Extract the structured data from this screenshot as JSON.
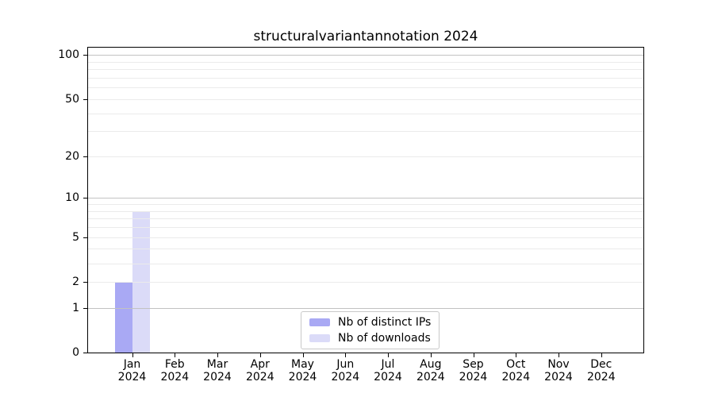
{
  "chart_data": {
    "type": "bar",
    "title": "structuralvariantannotation 2024",
    "x_categories": [
      "Jan",
      "Feb",
      "Mar",
      "Apr",
      "May",
      "Jun",
      "Jul",
      "Aug",
      "Sep",
      "Oct",
      "Nov",
      "Dec"
    ],
    "x_year": "2024",
    "series": [
      {
        "key": "distinct-ips",
        "name": "Nb of distinct IPs",
        "color": "#a9a9f4",
        "values": [
          2,
          0,
          0,
          0,
          0,
          0,
          0,
          0,
          0,
          0,
          0,
          0
        ]
      },
      {
        "key": "downloads",
        "name": "Nb of downloads",
        "color": "#dbdbf8",
        "values": [
          8,
          0,
          0,
          0,
          0,
          0,
          0,
          0,
          0,
          0,
          0,
          0
        ]
      }
    ],
    "y_axis": {
      "scale": "log10(value+1)",
      "tick_values": [
        100,
        50,
        20,
        10,
        5,
        2,
        1,
        0
      ],
      "major_gridlines": [
        1,
        10,
        100
      ],
      "minor_gridlines": [
        2,
        3,
        4,
        5,
        6,
        7,
        8,
        9,
        20,
        30,
        40,
        50,
        60,
        70,
        80,
        90
      ]
    },
    "legend": {
      "position": "bottom-center-inside",
      "items": [
        "Nb of distinct IPs",
        "Nb of downloads"
      ]
    },
    "grid": true,
    "colors": {
      "bar_distinct_ips": "#a9a9f4",
      "bar_downloads": "#dbdbf8",
      "major_grid": "#c2c2c2",
      "minor_grid": "#ebebeb",
      "axis": "#000000",
      "legend_border": "#c9c9c9",
      "background": "#ffffff"
    }
  }
}
